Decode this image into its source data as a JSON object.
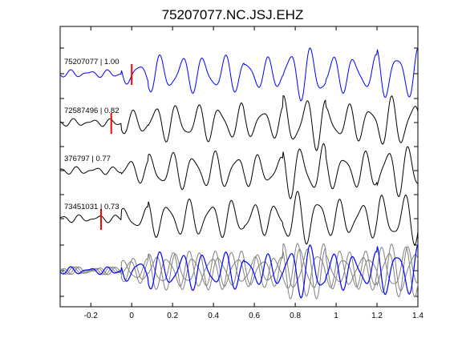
{
  "chart_data": {
    "type": "line",
    "title": "75207077.NC.JSJ.EHZ",
    "xlabel": "",
    "ylabel": "",
    "xlim": [
      -0.35,
      1.4
    ],
    "x_ticks": [
      -0.2,
      0,
      0.2,
      0.4,
      0.6,
      0.8,
      1,
      1.2,
      1.4
    ],
    "x_tick_labels": [
      "-0.2",
      "0",
      "0.2",
      "0.4",
      "0.6",
      "0.8",
      "1",
      "1.2",
      "1.4"
    ],
    "grid": false,
    "series": [
      {
        "name": "75207077 | 1.00",
        "color": "#0000ff",
        "pick_time": 0.0,
        "pick_color": "#ff0000",
        "noise_seed": 1
      },
      {
        "name": "72587496 | 0.82",
        "color": "#000000",
        "pick_time": -0.1,
        "pick_color": "#ff0000",
        "noise_seed": 2
      },
      {
        "name": "376797 | 0.77",
        "color": "#000000",
        "pick_time": null,
        "pick_color": "#ff0000",
        "noise_seed": 3
      },
      {
        "name": "73451031 | 0.73",
        "color": "#000000",
        "pick_time": -0.15,
        "pick_color": "#ff0000",
        "noise_seed": 4
      }
    ],
    "stack": {
      "overlay_color": "#808080",
      "top_color": "#0000ff"
    }
  }
}
